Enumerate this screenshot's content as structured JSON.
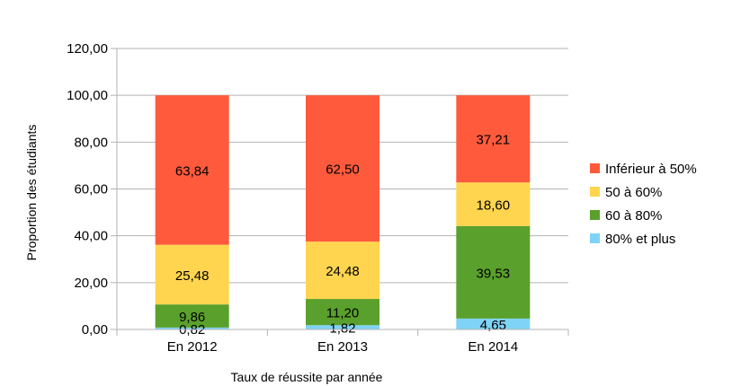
{
  "chart_data": {
    "type": "bar",
    "stacked": true,
    "title": "",
    "xlabel": "Taux de réussite par année",
    "ylabel": "Proportion des étudiants",
    "ylim": [
      0,
      120
    ],
    "yticks": [
      "0,00",
      "20,00",
      "40,00",
      "60,00",
      "80,00",
      "100,00",
      "120,00"
    ],
    "categories": [
      "En 2012",
      "En 2013",
      "En 2014"
    ],
    "series": [
      {
        "name": "80% et plus",
        "color": "#7fd3f7",
        "values": [
          0.82,
          1.82,
          4.65
        ],
        "labels": [
          "0,82",
          "1,82",
          "4,65"
        ]
      },
      {
        "name": "60 à 80%",
        "color": "#5aa02c",
        "values": [
          9.86,
          11.2,
          39.53
        ],
        "labels": [
          "9,86",
          "11,20",
          "39,53"
        ]
      },
      {
        "name": "50 à 60%",
        "color": "#ffd54f",
        "values": [
          25.48,
          24.48,
          18.6
        ],
        "labels": [
          "25,48",
          "24,48",
          "18,60"
        ]
      },
      {
        "name": "Inférieur à 50%",
        "color": "#ff5a3c",
        "values": [
          63.84,
          62.5,
          37.21
        ],
        "labels": [
          "63,84",
          "62,50",
          "37,21"
        ]
      }
    ],
    "legend": "right",
    "grid": true
  }
}
